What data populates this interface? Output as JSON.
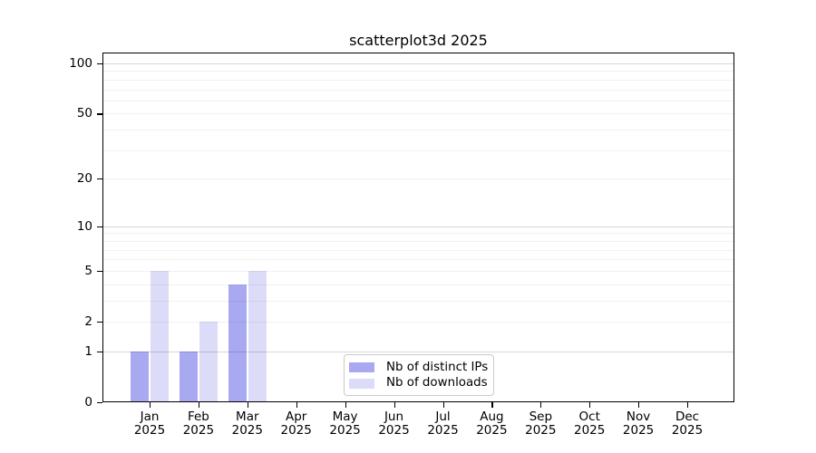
{
  "chart_data": {
    "type": "bar",
    "title": "scatterplot3d 2025",
    "categories": [
      "Jan 2025",
      "Feb 2025",
      "Mar 2025",
      "Apr 2025",
      "May 2025",
      "Jun 2025",
      "Jul 2025",
      "Aug 2025",
      "Sep 2025",
      "Oct 2025",
      "Nov 2025",
      "Dec 2025"
    ],
    "series": [
      {
        "name": "Nb of distinct IPs",
        "color": "#a9a9f1",
        "values": [
          1,
          1,
          4,
          0,
          0,
          0,
          0,
          0,
          0,
          0,
          0,
          0
        ]
      },
      {
        "name": "Nb of downloads",
        "color": "#dcdcf8",
        "values": [
          5,
          2,
          5,
          0,
          0,
          0,
          0,
          0,
          0,
          0,
          0,
          0
        ]
      }
    ],
    "xlabel": "",
    "ylabel": "",
    "ylim": [
      0,
      100
    ],
    "y_scale": "log1p",
    "y_ticks": [
      0,
      1,
      2,
      5,
      10,
      20,
      50,
      100
    ],
    "y_tick_labels": [
      "0",
      "1",
      "2",
      "5",
      "10",
      "20",
      "50",
      "100"
    ],
    "y_minor_gridlines": [
      2,
      3,
      4,
      5,
      6,
      7,
      8,
      9,
      20,
      30,
      40,
      50,
      60,
      70,
      80,
      90
    ],
    "y_major_gridlines": [
      1,
      10,
      100
    ],
    "grid": "on",
    "legend_position": "lower center",
    "background_color": "#ffffff",
    "axis_color": "#000000"
  }
}
